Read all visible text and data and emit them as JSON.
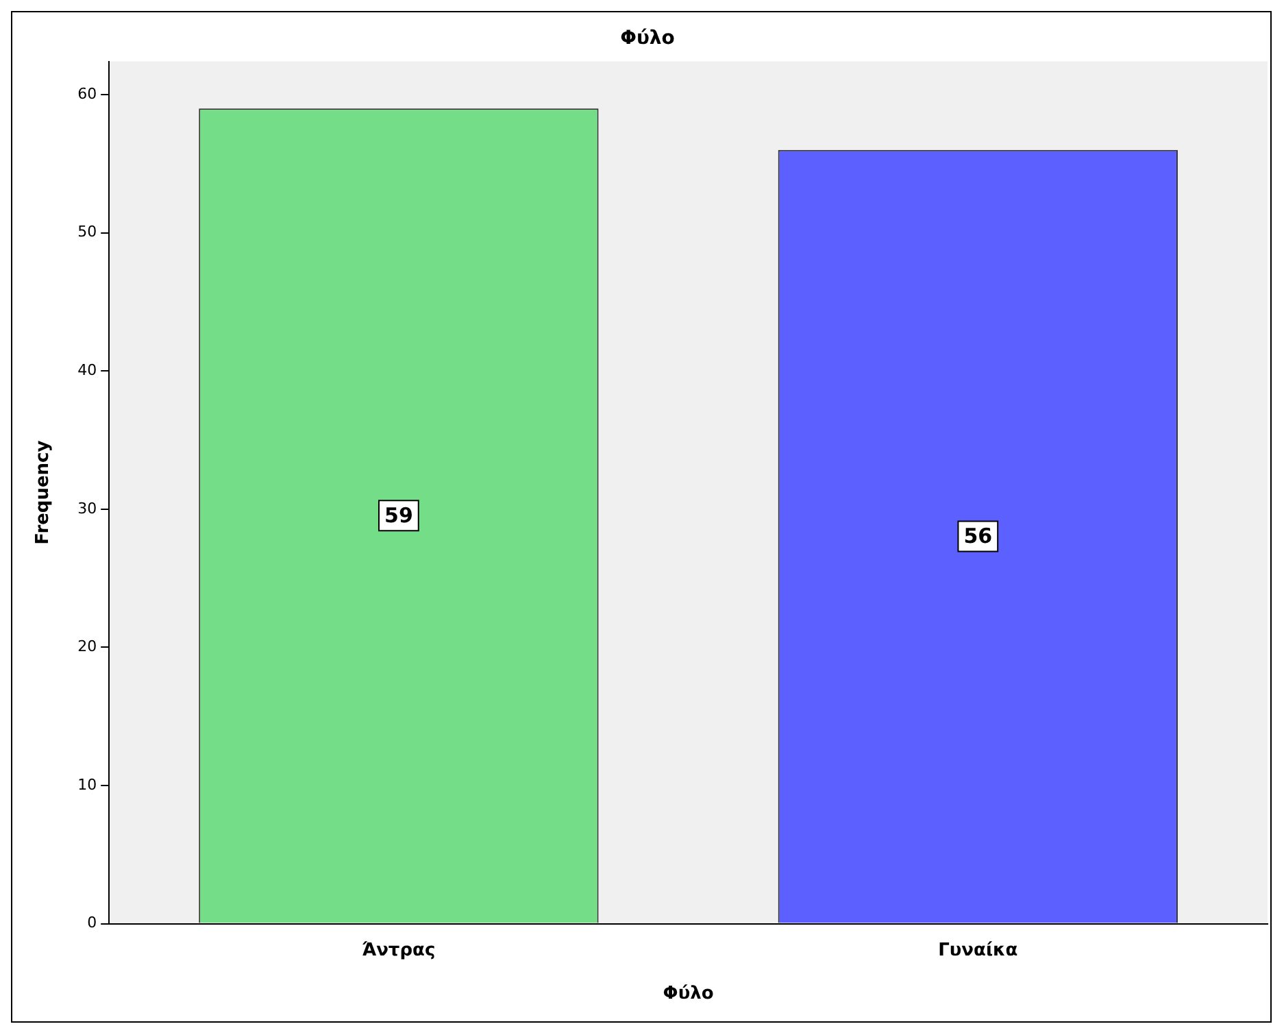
{
  "chart_data": {
    "type": "bar",
    "title": "Φύλο",
    "xlabel": "Φύλο",
    "ylabel": "Frequency",
    "categories": [
      "Άντρας",
      "Γυναίκα"
    ],
    "values": [
      59,
      56
    ],
    "colors": [
      "#73dd87",
      "#5b60ff"
    ],
    "ylim": [
      0,
      62.4
    ],
    "yticks": [
      0,
      10,
      20,
      30,
      40,
      50,
      60
    ],
    "grid": false,
    "legend": false,
    "data_labels": true
  }
}
